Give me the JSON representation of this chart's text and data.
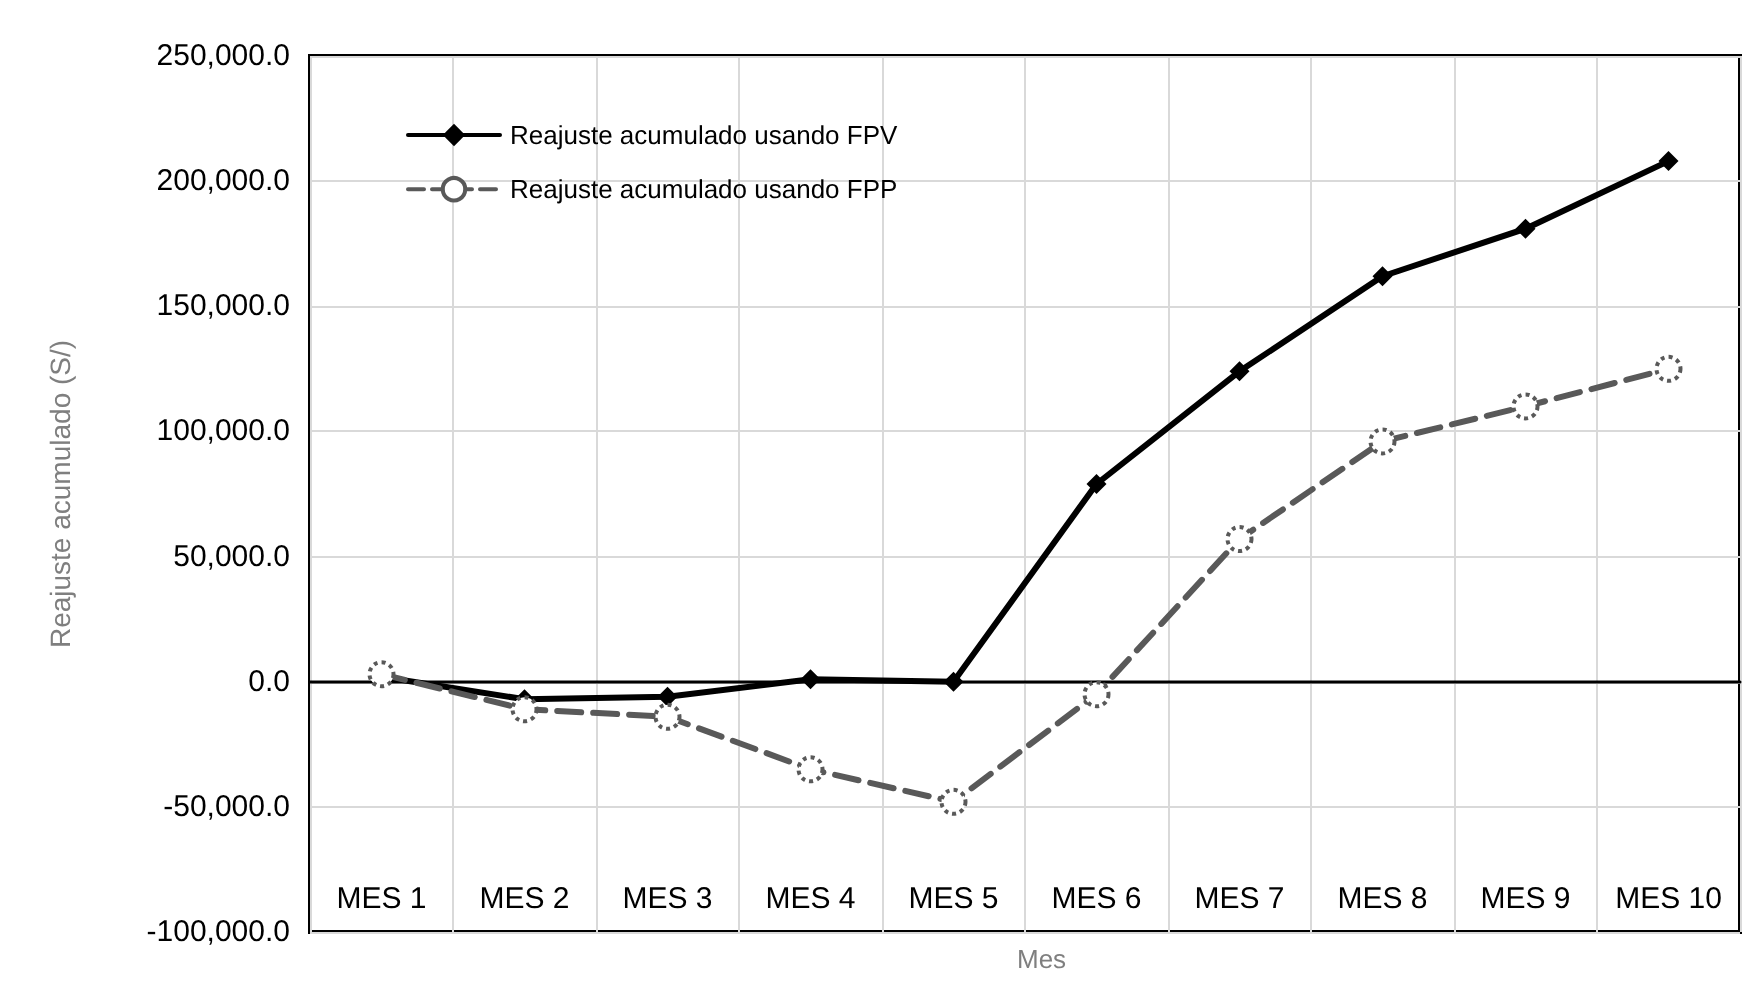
{
  "chart_data": {
    "type": "line",
    "xlabel": "Mes",
    "ylabel": "Reajuste acumulado (S/)",
    "categories": [
      "MES 1",
      "MES 2",
      "MES 3",
      "MES 4",
      "MES 5",
      "MES 6",
      "MES 7",
      "MES 8",
      "MES 9",
      "MES 10"
    ],
    "series": [
      {
        "name": "Reajuste acumulado usando FPV",
        "color": "#000000",
        "marker": "diamond",
        "line_style": "solid",
        "values": [
          2000,
          -7000,
          -6000,
          1000,
          0,
          79000,
          124000,
          162000,
          181000,
          208000
        ]
      },
      {
        "name": "Reajuste acumulado usando FPP",
        "color": "#595959",
        "marker": "circle",
        "line_style": "dashed",
        "values": [
          3000,
          -11000,
          -14000,
          -35000,
          -48000,
          -5000,
          57000,
          96000,
          110000,
          125000
        ]
      }
    ],
    "ylim": [
      -100000,
      250000
    ],
    "yticks": [
      {
        "value": -100000,
        "label": "-100,000.0"
      },
      {
        "value": -50000,
        "label": "-50,000.0"
      },
      {
        "value": 0,
        "label": "0.0"
      },
      {
        "value": 50000,
        "label": "50,000.0"
      },
      {
        "value": 100000,
        "label": "100,000.0"
      },
      {
        "value": 150000,
        "label": "150,000.0"
      },
      {
        "value": 200000,
        "label": "200,000.0"
      },
      {
        "value": 250000,
        "label": "250,000.0"
      }
    ],
    "grid": true,
    "legend": "top left"
  }
}
